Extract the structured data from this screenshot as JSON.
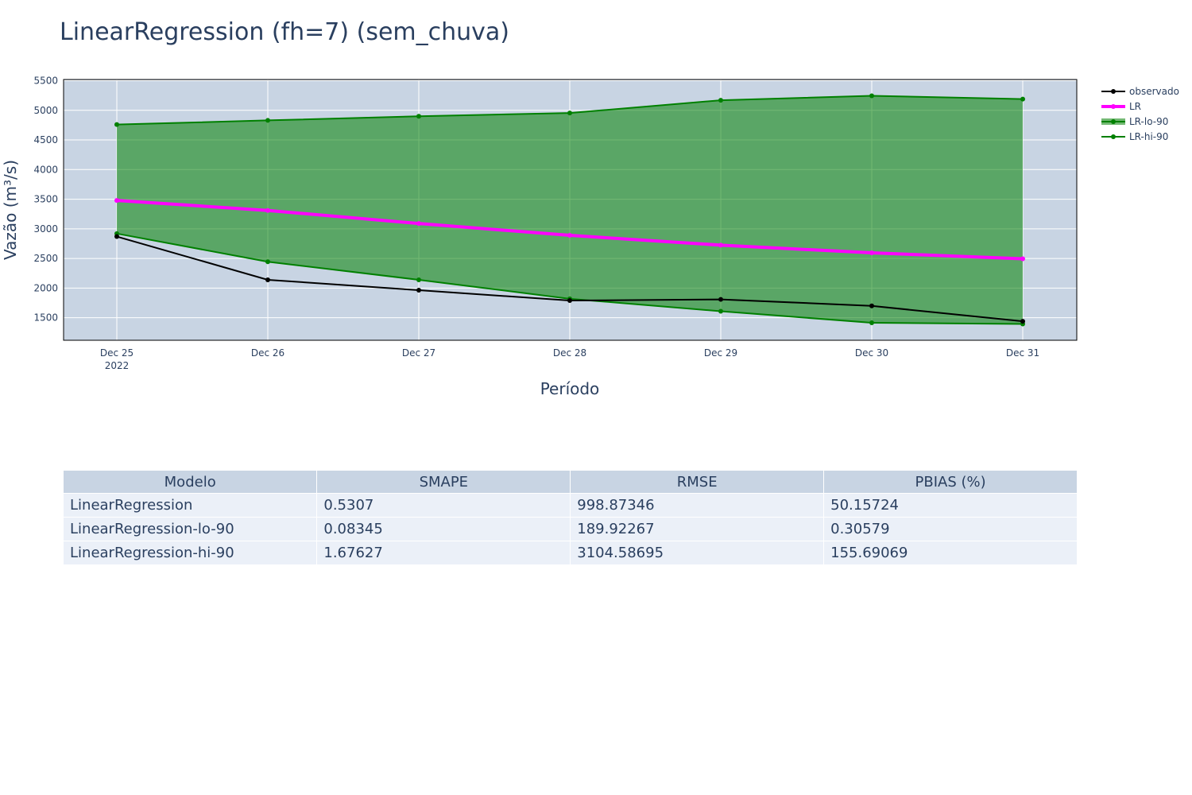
{
  "chart_data": {
    "type": "line",
    "title": "LinearRegression (fh=7) (sem_chuva)",
    "xlabel": "Período",
    "ylabel": "Vazão (m³/s)",
    "x": [
      "Dec 25",
      "Dec 26",
      "Dec 27",
      "Dec 28",
      "Dec 29",
      "Dec 30",
      "Dec 31"
    ],
    "x_year_label": "2022",
    "ylim": [
      1120,
      5520
    ],
    "yticks": [
      1500,
      2000,
      2500,
      3000,
      3500,
      4000,
      4500,
      5000,
      5500
    ],
    "grid": true,
    "legend_position": "right",
    "series": [
      {
        "name": "observado",
        "color": "#000000",
        "values": [
          2870,
          2140,
          1965,
          1790,
          1810,
          1700,
          1440
        ]
      },
      {
        "name": "LR",
        "color": "#ff00ff",
        "values": [
          3480,
          3310,
          3090,
          2890,
          2725,
          2595,
          2495
        ]
      },
      {
        "name": "LR-lo-90",
        "color": "#008000",
        "values": [
          2920,
          2445,
          2140,
          1820,
          1610,
          1415,
          1395
        ]
      },
      {
        "name": "LR-hi-90",
        "color": "#008000",
        "values": [
          4760,
          4830,
          4900,
          4955,
          5170,
          5245,
          5190
        ]
      }
    ],
    "band_fill_color": "rgba(0,128,0,0.55)"
  },
  "table": {
    "headers": [
      "Modelo",
      "SMAPE",
      "RMSE",
      "PBIAS (%)"
    ],
    "rows": [
      [
        "LinearRegression",
        "0.5307",
        "998.87346",
        "50.15724"
      ],
      [
        "LinearRegression-lo-90",
        "0.08345",
        "189.92267",
        "0.30579"
      ],
      [
        "LinearRegression-hi-90",
        "1.67627",
        "3104.58695",
        "155.69069"
      ]
    ]
  }
}
